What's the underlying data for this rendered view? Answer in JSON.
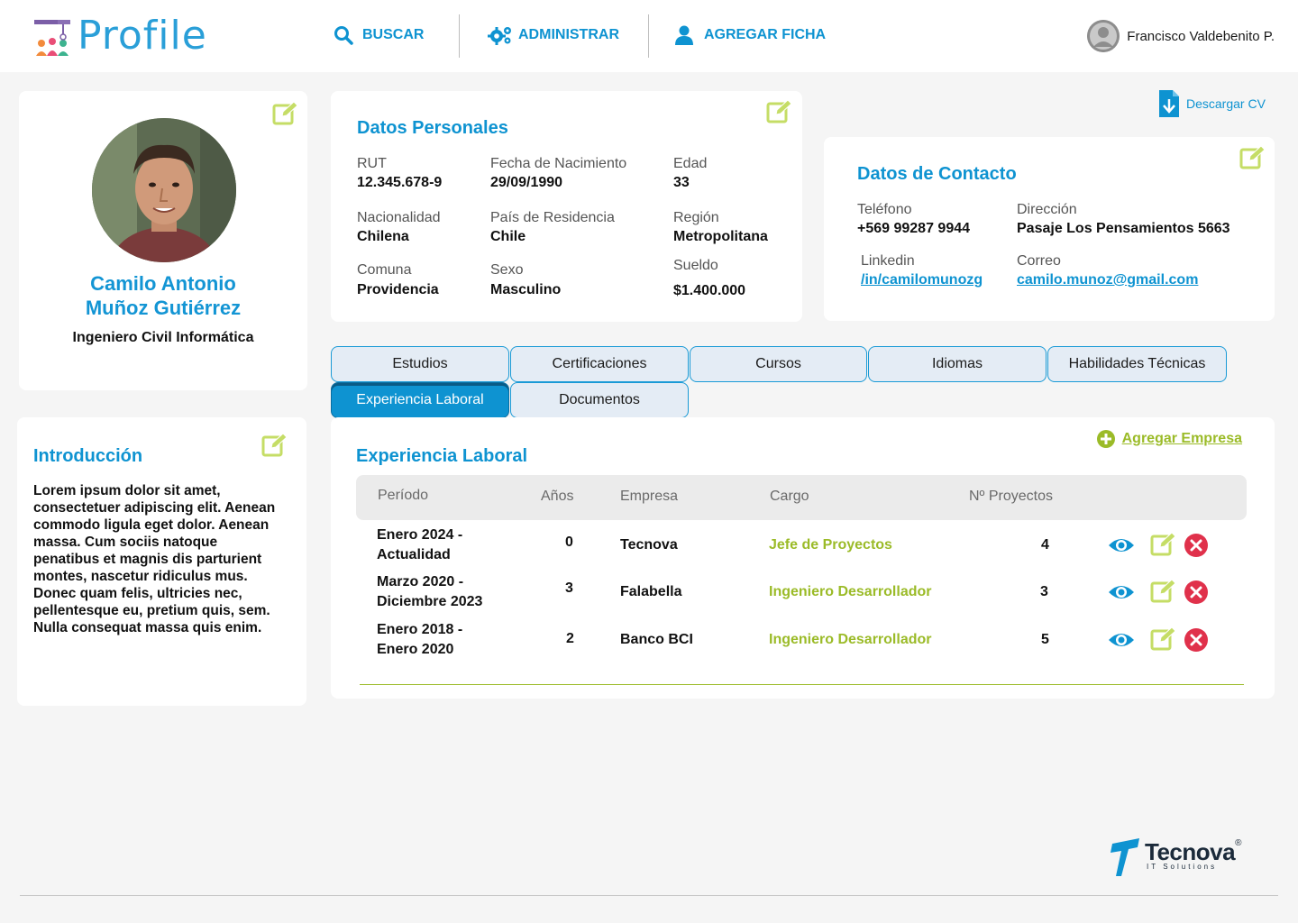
{
  "app": {
    "logo_text": "Profile",
    "nav": [
      {
        "label": "BUSCAR",
        "icon": "search-icon"
      },
      {
        "label": "ADMINISTRAR",
        "icon": "gears-icon"
      },
      {
        "label": "AGREGAR FICHA",
        "icon": "user-icon"
      }
    ],
    "user_name": "Francisco Valdebenito P."
  },
  "profile": {
    "name_line1": "Camilo Antonio",
    "name_line2": "Muñoz Gutiérrez",
    "title": "Ingeniero Civil Informática"
  },
  "intro": {
    "title": "Introducción",
    "text": "Lorem ipsum dolor sit amet, consectetuer adipiscing elit. Aenean commodo ligula eget dolor. Aenean massa. Cum sociis natoque penatibus et magnis dis parturient montes, nascetur ridiculus mus. Donec quam felis, ultricies nec, pellentesque eu, pretium quis, sem. Nulla consequat massa quis enim."
  },
  "personal": {
    "title": "Datos Personales",
    "fields": [
      {
        "label": "RUT",
        "value": "12.345.678-9"
      },
      {
        "label": "Fecha de Nacimiento",
        "value": "29/09/1990"
      },
      {
        "label": "Edad",
        "value": "33"
      },
      {
        "label": "Nacionalidad",
        "value": "Chilena"
      },
      {
        "label": "País de Residencia",
        "value": "Chile"
      },
      {
        "label": "Región",
        "value": "Metropolitana"
      },
      {
        "label": "Comuna",
        "value": "Providencia"
      },
      {
        "label": "Sexo",
        "value": "Masculino"
      },
      {
        "label": "Sueldo",
        "value": "$1.400.000"
      }
    ]
  },
  "download_cv": "Descargar CV",
  "contact": {
    "title": "Datos de Contacto",
    "phone_label": "Teléfono",
    "phone": "+569 99287 9944",
    "address_label": "Dirección",
    "address": "Pasaje Los Pensamientos 5663",
    "linkedin_label": "Linkedin",
    "linkedin": "/in/camilomunozg",
    "email_label": "Correo",
    "email": "camilo.munoz@gmail.com"
  },
  "tabs": [
    {
      "label": "Estudios",
      "active": false
    },
    {
      "label": "Certificaciones",
      "active": false
    },
    {
      "label": "Cursos",
      "active": false
    },
    {
      "label": "Idiomas",
      "active": false
    },
    {
      "label": "Habilidades Técnicas",
      "active": false
    },
    {
      "label": "Experiencia Laboral",
      "active": true
    },
    {
      "label": "Documentos",
      "active": false
    }
  ],
  "experience": {
    "title": "Experiencia Laboral",
    "add_label": "Agregar Empresa",
    "columns": [
      "Período",
      "Años",
      "Empresa",
      "Cargo",
      "Nº Proyectos"
    ],
    "rows": [
      {
        "period_1": "Enero 2024 -",
        "period_2": "Actualidad",
        "years": "0",
        "company": "Tecnova",
        "role": "Jefe de Proyectos",
        "projects": "4"
      },
      {
        "period_1": "Marzo 2020 -",
        "period_2": "Diciembre 2023",
        "years": "3",
        "company": "Falabella",
        "role": "Ingeniero Desarrollador",
        "projects": "3"
      },
      {
        "period_1": "Enero 2018 -",
        "period_2": "Enero 2020",
        "years": "2",
        "company": "Banco BCI",
        "role": "Ingeniero Desarrollador",
        "projects": "5"
      }
    ]
  },
  "footer": {
    "brand": "Tecnova",
    "brand_mark": "®",
    "tagline": "IT Solutions"
  },
  "colors": {
    "primary": "#0e93d1",
    "accent_green": "#9bbb28",
    "edit_green": "#c5dd66",
    "delete_red": "#e0314b"
  }
}
